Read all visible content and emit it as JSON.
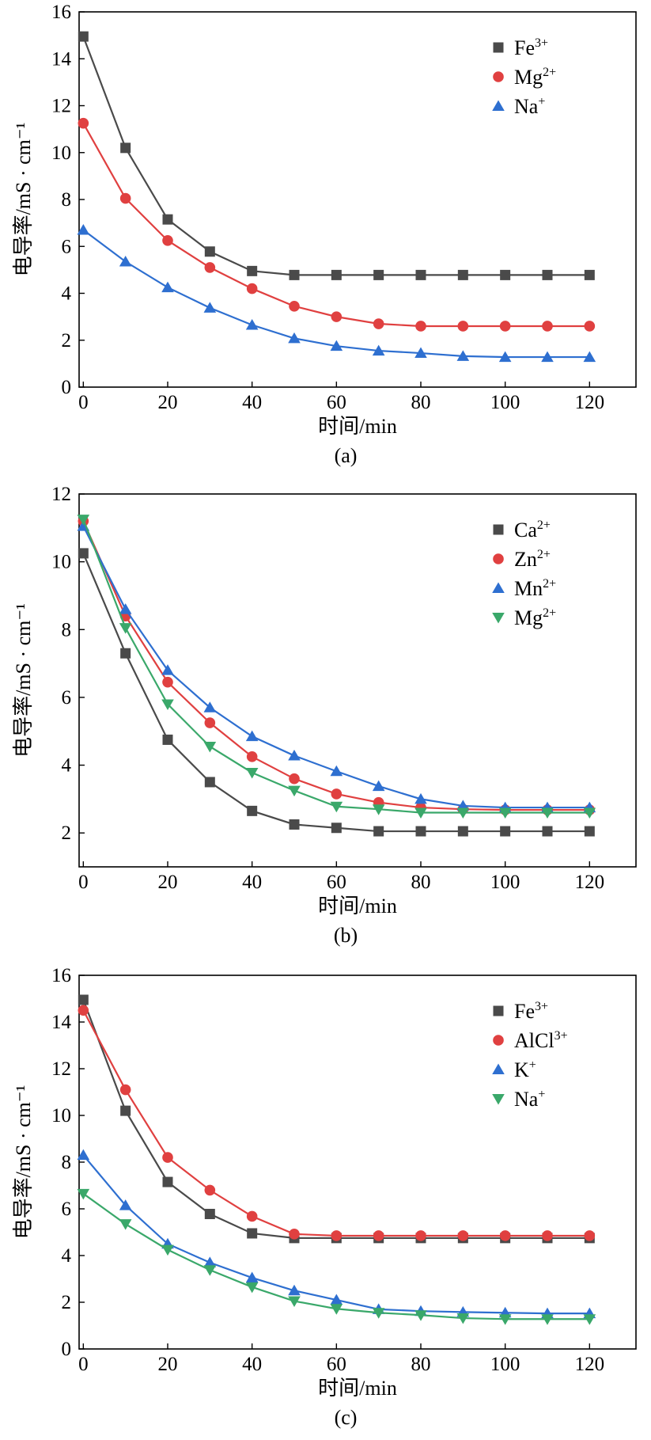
{
  "chart_data": [
    {
      "type": "line",
      "panel_label": "(a)",
      "xlabel": "时间/min",
      "ylabel": "电导率/mS · cm⁻¹",
      "xlim": [
        -1,
        131
      ],
      "ylim": [
        0,
        16
      ],
      "xticks": [
        0,
        20,
        40,
        60,
        80,
        100,
        120
      ],
      "yticks": [
        0,
        2,
        4,
        6,
        8,
        10,
        12,
        14,
        16
      ],
      "x": [
        0,
        10,
        20,
        30,
        40,
        50,
        60,
        70,
        80,
        90,
        100,
        110,
        120
      ],
      "legend_position": "top-right",
      "series": [
        {
          "name": "Fe",
          "sup": "3+",
          "marker": "square",
          "color": "#4a4a4a",
          "values": [
            14.95,
            10.2,
            7.15,
            5.78,
            4.95,
            4.78,
            4.78,
            4.78,
            4.78,
            4.78,
            4.78,
            4.78,
            4.78
          ]
        },
        {
          "name": "Mg",
          "sup": "2+",
          "marker": "circle",
          "color": "#e04040",
          "values": [
            11.25,
            8.05,
            6.25,
            5.1,
            4.2,
            3.45,
            3.0,
            2.7,
            2.6,
            2.6,
            2.6,
            2.6,
            2.6
          ]
        },
        {
          "name": "Na",
          "sup": "+",
          "marker": "triangle-up",
          "color": "#2e6fd0",
          "values": [
            6.7,
            5.35,
            4.25,
            3.38,
            2.65,
            2.08,
            1.75,
            1.55,
            1.45,
            1.32,
            1.28,
            1.28,
            1.28
          ]
        }
      ]
    },
    {
      "type": "line",
      "panel_label": "(b)",
      "xlabel": "时间/min",
      "ylabel": "电导率/mS · cm⁻¹",
      "xlim": [
        -1,
        131
      ],
      "ylim": [
        1,
        12
      ],
      "xticks": [
        0,
        20,
        40,
        60,
        80,
        100,
        120
      ],
      "yticks": [
        2,
        4,
        6,
        8,
        10,
        12
      ],
      "x": [
        0,
        10,
        20,
        30,
        40,
        50,
        60,
        70,
        80,
        90,
        100,
        110,
        120
      ],
      "legend_position": "top-right",
      "series": [
        {
          "name": "Ca",
          "sup": "2+",
          "marker": "square",
          "color": "#4a4a4a",
          "values": [
            10.25,
            7.3,
            4.75,
            3.5,
            2.65,
            2.25,
            2.15,
            2.05,
            2.05,
            2.05,
            2.05,
            2.05,
            2.05
          ]
        },
        {
          "name": "Zn",
          "sup": "2+",
          "marker": "circle",
          "color": "#e04040",
          "values": [
            11.2,
            8.4,
            6.45,
            5.25,
            4.25,
            3.6,
            3.15,
            2.9,
            2.75,
            2.7,
            2.68,
            2.68,
            2.68
          ]
        },
        {
          "name": "Mn",
          "sup": "2+",
          "marker": "triangle-up",
          "color": "#2e6fd0",
          "values": [
            11.05,
            8.6,
            6.8,
            5.7,
            4.85,
            4.28,
            3.82,
            3.38,
            3.0,
            2.8,
            2.75,
            2.75,
            2.75
          ]
        },
        {
          "name": "Mg",
          "sup": "2+",
          "marker": "triangle-down",
          "color": "#3aa86a",
          "values": [
            11.25,
            8.05,
            5.8,
            4.55,
            3.78,
            3.25,
            2.78,
            2.7,
            2.6,
            2.6,
            2.6,
            2.6,
            2.6
          ]
        }
      ]
    },
    {
      "type": "line",
      "panel_label": "(c)",
      "xlabel": "时间/min",
      "ylabel": "电导率/mS · cm⁻¹",
      "xlim": [
        -1,
        131
      ],
      "ylim": [
        0,
        16
      ],
      "xticks": [
        0,
        20,
        40,
        60,
        80,
        100,
        120
      ],
      "yticks": [
        0,
        2,
        4,
        6,
        8,
        10,
        12,
        14,
        16
      ],
      "x": [
        0,
        10,
        20,
        30,
        40,
        50,
        60,
        70,
        80,
        90,
        100,
        110,
        120
      ],
      "legend_position": "top-right",
      "series": [
        {
          "name": "Fe",
          "sup": "3+",
          "marker": "square",
          "color": "#4a4a4a",
          "values": [
            14.95,
            10.2,
            7.15,
            5.78,
            4.95,
            4.75,
            4.75,
            4.75,
            4.75,
            4.75,
            4.75,
            4.75,
            4.75
          ]
        },
        {
          "name": "AlCl",
          "sup": "3+",
          "marker": "circle",
          "color": "#e04040",
          "values": [
            14.5,
            11.1,
            8.2,
            6.8,
            5.68,
            4.92,
            4.85,
            4.85,
            4.85,
            4.85,
            4.85,
            4.85,
            4.85
          ]
        },
        {
          "name": "K",
          "sup": "+",
          "marker": "triangle-up",
          "color": "#2e6fd0",
          "values": [
            8.3,
            6.15,
            4.5,
            3.7,
            3.05,
            2.5,
            2.1,
            1.7,
            1.62,
            1.58,
            1.55,
            1.52,
            1.52
          ]
        },
        {
          "name": "Na",
          "sup": "+",
          "marker": "triangle-down",
          "color": "#3aa86a",
          "values": [
            6.65,
            5.35,
            4.25,
            3.38,
            2.65,
            2.05,
            1.72,
            1.55,
            1.45,
            1.32,
            1.28,
            1.28,
            1.28
          ]
        }
      ]
    }
  ]
}
